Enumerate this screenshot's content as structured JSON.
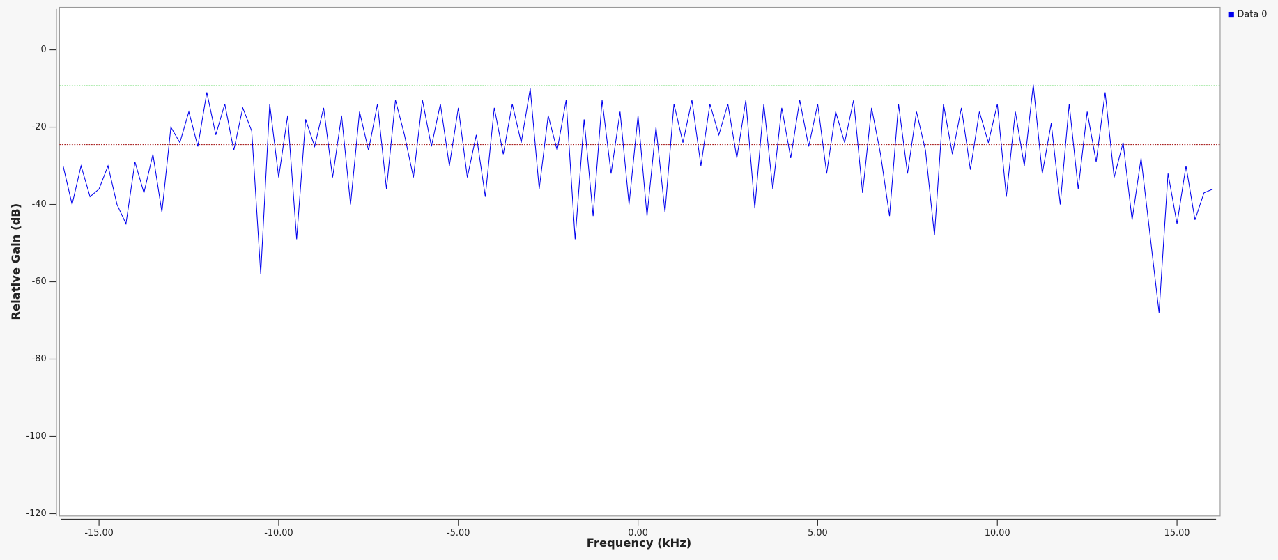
{
  "chart_data": {
    "type": "line",
    "xlabel": "Frequency (kHz)",
    "ylabel": "Relative Gain (dB)",
    "xlim": [
      -16.1,
      16.2
    ],
    "ylim": [
      -120.6,
      11
    ],
    "xticks": [
      {
        "value": -15,
        "label": "-15.00"
      },
      {
        "value": -10,
        "label": "-10.00"
      },
      {
        "value": -5,
        "label": "-5.00"
      },
      {
        "value": 0,
        "label": "0.00"
      },
      {
        "value": 5,
        "label": "5.00"
      },
      {
        "value": 10,
        "label": "10.00"
      },
      {
        "value": 15,
        "label": "15.00"
      }
    ],
    "yticks": [
      -120,
      -100,
      -80,
      -60,
      -40,
      -20,
      0
    ],
    "legend": "top-right",
    "markers": [
      {
        "value": -9.3,
        "color": "#33cc33"
      },
      {
        "value": -24.5,
        "color": "#aa2222"
      }
    ],
    "x": [
      -16,
      -15.75,
      -15.5,
      -15.25,
      -15,
      -14.75,
      -14.5,
      -14.25,
      -14,
      -13.75,
      -13.5,
      -13.25,
      -13,
      -12.75,
      -12.5,
      -12.25,
      -12,
      -11.75,
      -11.5,
      -11.25,
      -11,
      -10.75,
      -10.5,
      -10.25,
      -10,
      -9.75,
      -9.5,
      -9.25,
      -9,
      -8.75,
      -8.5,
      -8.25,
      -8,
      -7.75,
      -7.5,
      -7.25,
      -7,
      -6.75,
      -6.5,
      -6.25,
      -6,
      -5.75,
      -5.5,
      -5.25,
      -5,
      -4.75,
      -4.5,
      -4.25,
      -4,
      -3.75,
      -3.5,
      -3.25,
      -3,
      -2.75,
      -2.5,
      -2.25,
      -2,
      -1.75,
      -1.5,
      -1.25,
      -1,
      -0.75,
      -0.5,
      -0.25,
      0,
      0.25,
      0.5,
      0.75,
      1,
      1.25,
      1.5,
      1.75,
      2,
      2.25,
      2.5,
      2.75,
      3,
      3.25,
      3.5,
      3.75,
      4,
      4.25,
      4.5,
      4.75,
      5,
      5.25,
      5.5,
      5.75,
      6,
      6.25,
      6.5,
      6.75,
      7,
      7.25,
      7.5,
      7.75,
      8,
      8.25,
      8.5,
      8.75,
      9,
      9.25,
      9.5,
      9.75,
      10,
      10.25,
      10.5,
      10.75,
      11,
      11.25,
      11.5,
      11.75,
      12,
      12.25,
      12.5,
      12.75,
      13,
      13.25,
      13.5,
      13.75,
      14,
      14.25,
      14.5,
      14.75,
      15,
      15.25,
      15.5,
      15.75,
      16
    ],
    "series": [
      {
        "name": "Data 0",
        "color": "#0000ee",
        "values": [
          -30,
          -40,
          -30,
          -38,
          -36,
          -30,
          -40,
          -45,
          -29,
          -37,
          -27,
          -42,
          -20,
          -24,
          -16,
          -25,
          -11,
          -22,
          -14,
          -26,
          -15,
          -21,
          -58,
          -14,
          -33,
          -17,
          -49,
          -18,
          -25,
          -15,
          -33,
          -17,
          -40,
          -16,
          -26,
          -14,
          -36,
          -13,
          -22,
          -33,
          -13,
          -25,
          -14,
          -30,
          -15,
          -33,
          -22,
          -38,
          -15,
          -27,
          -14,
          -24,
          -10,
          -36,
          -17,
          -26,
          -13,
          -49,
          -18,
          -43,
          -13,
          -32,
          -16,
          -40,
          -17,
          -43,
          -20,
          -42,
          -14,
          -24,
          -13,
          -30,
          -14,
          -22,
          -14,
          -28,
          -13,
          -41,
          -14,
          -36,
          -15,
          -28,
          -13,
          -25,
          -14,
          -32,
          -16,
          -24,
          -13,
          -37,
          -15,
          -27,
          -43,
          -14,
          -32,
          -16,
          -26,
          -48,
          -14,
          -27,
          -15,
          -31,
          -16,
          -24,
          -14,
          -38,
          -16,
          -30,
          -9,
          -32,
          -19,
          -40,
          -14,
          -36,
          -16,
          -29,
          -11,
          -33,
          -24,
          -44,
          -28,
          -48,
          -68,
          -32,
          -45,
          -30,
          -44,
          -37,
          -36
        ]
      }
    ]
  }
}
